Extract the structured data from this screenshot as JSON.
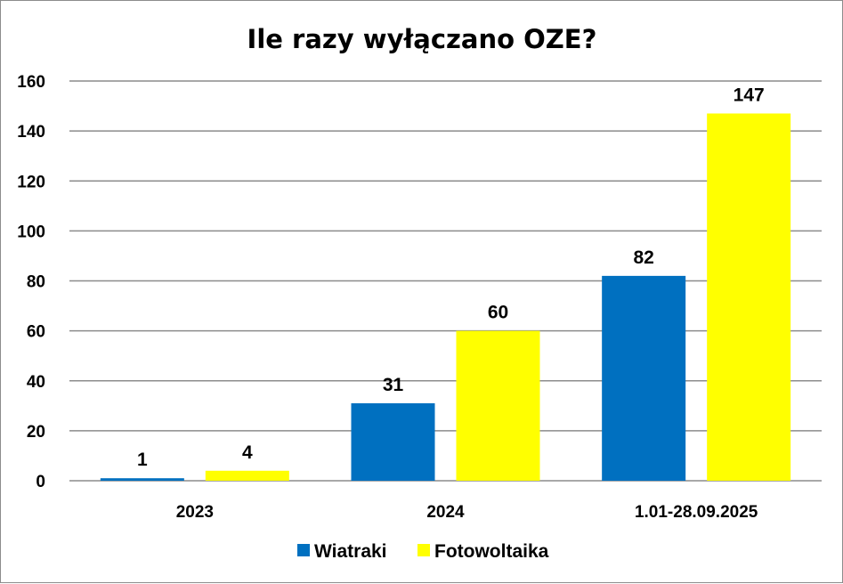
{
  "chart_data": {
    "type": "bar",
    "title": "Ile razy wyłączano OZE?",
    "categories": [
      "2023",
      "2024",
      "1.01-28.09.2025"
    ],
    "series": [
      {
        "name": "Wiatraki",
        "values": [
          1,
          31,
          82
        ],
        "color": "#0070C0"
      },
      {
        "name": "Fotowoltaika",
        "values": [
          4,
          60,
          147
        ],
        "color": "#FFFF00"
      }
    ],
    "ylim": [
      0,
      160
    ],
    "yticks": [
      "0",
      "20",
      "40",
      "60",
      "80",
      "100",
      "120",
      "140",
      "160"
    ],
    "grid": true,
    "legend": "bottom",
    "gridColor": "#8c8c8c"
  }
}
